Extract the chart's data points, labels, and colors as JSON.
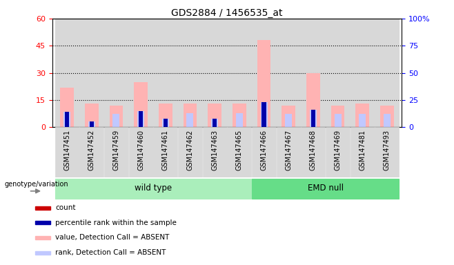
{
  "title": "GDS2884 / 1456535_at",
  "samples": [
    "GSM147451",
    "GSM147452",
    "GSM147459",
    "GSM147460",
    "GSM147461",
    "GSM147462",
    "GSM147463",
    "GSM147465",
    "GSM147466",
    "GSM147467",
    "GSM147468",
    "GSM147469",
    "GSM147481",
    "GSM147493"
  ],
  "count_values": [
    0,
    0,
    0,
    0,
    0,
    0,
    0,
    0,
    0,
    0,
    0,
    0,
    0,
    0
  ],
  "rank_values": [
    14,
    5,
    0,
    15,
    8,
    0,
    8,
    0,
    23,
    0,
    16,
    0,
    0,
    0
  ],
  "absent_value": [
    22,
    13,
    12,
    25,
    13,
    13,
    13,
    13,
    48,
    12,
    30,
    12,
    13,
    12
  ],
  "absent_rank": [
    14,
    5,
    12,
    15,
    8,
    13,
    8,
    13,
    23,
    12,
    16,
    12,
    12,
    12
  ],
  "groups": {
    "wild type": [
      0,
      1,
      2,
      3,
      4,
      5,
      6,
      7
    ],
    "EMD null": [
      8,
      9,
      10,
      11,
      12,
      13
    ]
  },
  "ylim_left": [
    0,
    60
  ],
  "ylim_right": [
    0,
    100
  ],
  "yticks_left": [
    0,
    15,
    30,
    45,
    60
  ],
  "yticks_right": [
    0,
    25,
    50,
    75,
    100
  ],
  "color_count": "#cc0000",
  "color_rank": "#0000aa",
  "color_absent_value": "#ffb3b3",
  "color_absent_rank": "#c0c8ff",
  "color_group_wt": "#aaeebb",
  "color_group_emd": "#66dd88",
  "color_bg_plot": "#d8d8d8",
  "legend_items": [
    {
      "label": "count",
      "color": "#cc0000"
    },
    {
      "label": "percentile rank within the sample",
      "color": "#0000aa"
    },
    {
      "label": "value, Detection Call = ABSENT",
      "color": "#ffb3b3"
    },
    {
      "label": "rank, Detection Call = ABSENT",
      "color": "#c0c8ff"
    }
  ],
  "bar_width": 0.4,
  "group_label": "genotype/variation"
}
